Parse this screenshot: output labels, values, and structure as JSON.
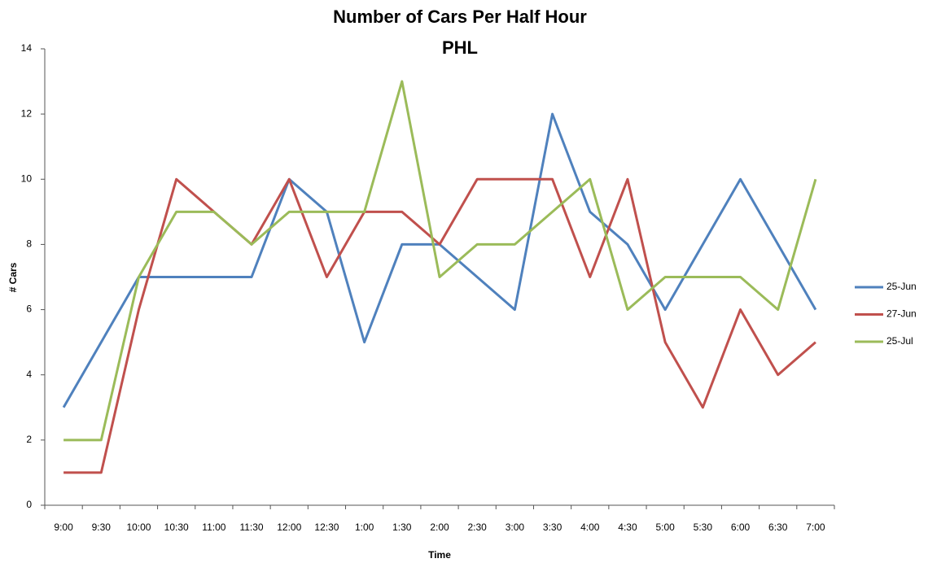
{
  "chart_data": {
    "type": "line",
    "title": "Number of Cars Per Half Hour",
    "subtitle": "PHL",
    "x_label": "Time",
    "y_label": "# Cars",
    "categories": [
      "9:00",
      "9:30",
      "10:00",
      "10:30",
      "11:00",
      "11:30",
      "12:00",
      "12:30",
      "1:00",
      "1:30",
      "2:00",
      "2:30",
      "3:00",
      "3:30",
      "4:00",
      "4:30",
      "5:00",
      "5:30",
      "6:00",
      "6:30",
      "7:00"
    ],
    "series": [
      {
        "name": "25-Jun",
        "color": "#4f81bd",
        "values": [
          3,
          5,
          7,
          7,
          7,
          7,
          10,
          9,
          5,
          8,
          8,
          7,
          6,
          12,
          9,
          8,
          6,
          8,
          10,
          8,
          6
        ]
      },
      {
        "name": "27-Jun",
        "color": "#c0504d",
        "values": [
          1,
          1,
          6,
          10,
          9,
          8,
          10,
          7,
          9,
          9,
          8,
          10,
          10,
          10,
          7,
          10,
          5,
          3,
          6,
          4,
          5
        ]
      },
      {
        "name": "25-Jul",
        "color": "#9bbb59",
        "values": [
          2,
          2,
          7,
          9,
          9,
          8,
          9,
          9,
          9,
          13,
          7,
          8,
          8,
          9,
          10,
          6,
          7,
          7,
          7,
          6,
          10
        ]
      }
    ],
    "ylim": [
      0,
      14
    ],
    "yticks": [
      0,
      2,
      4,
      6,
      8,
      10,
      12,
      14
    ],
    "grid": false,
    "legend": "right"
  }
}
